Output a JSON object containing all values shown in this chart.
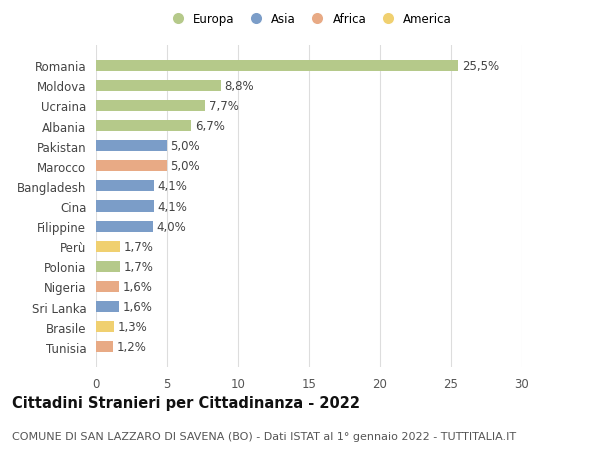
{
  "countries": [
    "Tunisia",
    "Brasile",
    "Sri Lanka",
    "Nigeria",
    "Polonia",
    "Perù",
    "Filippine",
    "Cina",
    "Bangladesh",
    "Marocco",
    "Pakistan",
    "Albania",
    "Ucraina",
    "Moldova",
    "Romania"
  ],
  "values": [
    1.2,
    1.3,
    1.6,
    1.6,
    1.7,
    1.7,
    4.0,
    4.1,
    4.1,
    5.0,
    5.0,
    6.7,
    7.7,
    8.8,
    25.5
  ],
  "labels": [
    "1,2%",
    "1,3%",
    "1,6%",
    "1,6%",
    "1,7%",
    "1,7%",
    "4,0%",
    "4,1%",
    "4,1%",
    "5,0%",
    "5,0%",
    "6,7%",
    "7,7%",
    "8,8%",
    "25,5%"
  ],
  "continents": [
    "Africa",
    "America",
    "Asia",
    "Africa",
    "Europa",
    "America",
    "Asia",
    "Asia",
    "Asia",
    "Africa",
    "Asia",
    "Europa",
    "Europa",
    "Europa",
    "Europa"
  ],
  "colors": {
    "Europa": "#b5c98a",
    "Asia": "#7b9dc8",
    "Africa": "#e8aa85",
    "America": "#f0d070"
  },
  "legend_order": [
    "Europa",
    "Asia",
    "Africa",
    "America"
  ],
  "title": "Cittadini Stranieri per Cittadinanza - 2022",
  "subtitle": "COMUNE DI SAN LAZZARO DI SAVENA (BO) - Dati ISTAT al 1° gennaio 2022 - TUTTITALIA.IT",
  "xlim": [
    0,
    30
  ],
  "xticks": [
    0,
    5,
    10,
    15,
    20,
    25,
    30
  ],
  "background_color": "#ffffff",
  "bar_height": 0.55,
  "grid_color": "#dddddd",
  "label_fontsize": 8.5,
  "tick_fontsize": 8.5,
  "title_fontsize": 10.5,
  "subtitle_fontsize": 8.0
}
